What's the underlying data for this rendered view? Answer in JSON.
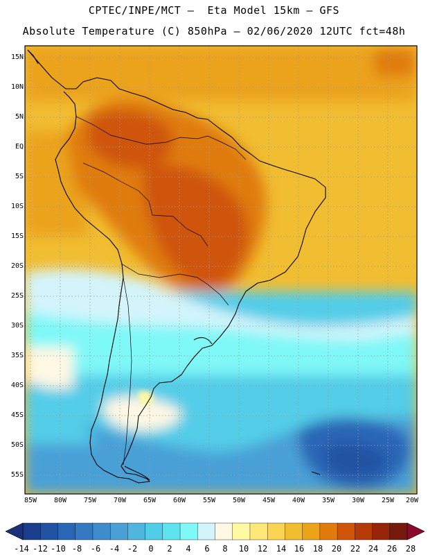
{
  "header": {
    "line1": "CPTEC/INPE/MCT –  Eta Model 15km – GFS",
    "line2": "Absolute Temperature (C) 850hPa – 02/06/2020 12UTC fct=48h"
  },
  "map": {
    "lat_labels": [
      "15N",
      "10N",
      "5N",
      "EQ",
      "5S",
      "10S",
      "15S",
      "20S",
      "25S",
      "30S",
      "35S",
      "40S",
      "45S",
      "50S",
      "55S"
    ],
    "lon_labels": [
      "85W",
      "80W",
      "75W",
      "70W",
      "65W",
      "60W",
      "55W",
      "50W",
      "45W",
      "40W",
      "35W",
      "30W",
      "25W",
      "20W"
    ]
  },
  "colorbar": {
    "labels": [
      "-14",
      "-12",
      "-10",
      "-8",
      "-6",
      "-4",
      "-2",
      "0",
      "2",
      "4",
      "6",
      "8",
      "10",
      "12",
      "14",
      "16",
      "18",
      "20",
      "22",
      "24",
      "26",
      "28"
    ],
    "colors": [
      "#1a3e8c",
      "#2152a3",
      "#2a66b6",
      "#3479c2",
      "#3f8ccd",
      "#4aa0d7",
      "#4fb6e0",
      "#52cde8",
      "#5fe3ef",
      "#7ff8f8",
      "#d4f4fb",
      "#fff8e4",
      "#fff9a2",
      "#ffe877",
      "#f9d553",
      "#f1bd31",
      "#eba31a",
      "#e07b0c",
      "#cf5508",
      "#b43a07",
      "#962509",
      "#761a0d"
    ],
    "low_arrow_color": "#1b3178",
    "high_arrow_color": "#8c0a2c"
  }
}
